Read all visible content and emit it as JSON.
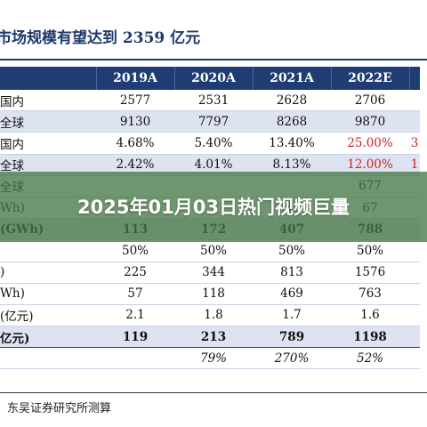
{
  "title": "市场规模有望达到 2359 亿元",
  "table": {
    "headers": [
      "",
      "2019A",
      "2020A",
      "2021A",
      "2022E",
      ""
    ],
    "rows": [
      {
        "label": "国内",
        "cells": [
          "2577",
          "2531",
          "2628",
          "2706"
        ],
        "red": [],
        "edge": "",
        "style": "plain"
      },
      {
        "label": "全球",
        "cells": [
          "9130",
          "7797",
          "8268",
          "9870"
        ],
        "red": [],
        "edge": "",
        "style": "shade"
      },
      {
        "label": "国内",
        "cells": [
          "4.68%",
          "5.40%",
          "13.40%",
          "25.00%"
        ],
        "red": [
          3
        ],
        "edge": "3",
        "style": "plain"
      },
      {
        "label": "全球",
        "cells": [
          "2.42%",
          "4.01%",
          "8.13%",
          "12.00%"
        ],
        "red": [
          3
        ],
        "edge": "1",
        "style": "shade"
      },
      {
        "label": "全球",
        "cells": [
          "",
          "",
          "",
          "677"
        ],
        "red": [],
        "edge": "",
        "style": "plain"
      },
      {
        "label": "Wh)",
        "cells": [
          "51",
          "",
          "61",
          "67"
        ],
        "red": [],
        "edge": "",
        "style": "plain"
      },
      {
        "label": "(GWh)",
        "cells": [
          "113",
          "172",
          "407",
          "788"
        ],
        "red": [],
        "edge": "",
        "style": "shade bold"
      },
      {
        "label": "",
        "cells": [
          "50%",
          "50%",
          "50%",
          "50%"
        ],
        "red": [],
        "edge": "",
        "style": "plain"
      },
      {
        "label": ")",
        "cells": [
          "225",
          "344",
          "813",
          "1576"
        ],
        "red": [],
        "edge": "",
        "style": "plain"
      },
      {
        "label": "Wh)",
        "cells": [
          "57",
          "118",
          "469",
          "763"
        ],
        "red": [],
        "edge": "",
        "style": "plain"
      },
      {
        "label": "(亿元)",
        "cells": [
          "2.1",
          "1.8",
          "1.7",
          "1.6"
        ],
        "red": [],
        "edge": "",
        "style": "plain"
      },
      {
        "label": "亿元)",
        "cells": [
          "119",
          "213",
          "789",
          "1198"
        ],
        "red": [],
        "edge": "",
        "style": "shade bold total"
      },
      {
        "label": "",
        "cells": [
          "",
          "79%",
          "270%",
          "52%"
        ],
        "red": [],
        "edge": "",
        "style": "italic"
      }
    ]
  },
  "source": "东吴证券研究所测算",
  "banner": {
    "text": "2025年01月03日热门视频巨量"
  }
}
